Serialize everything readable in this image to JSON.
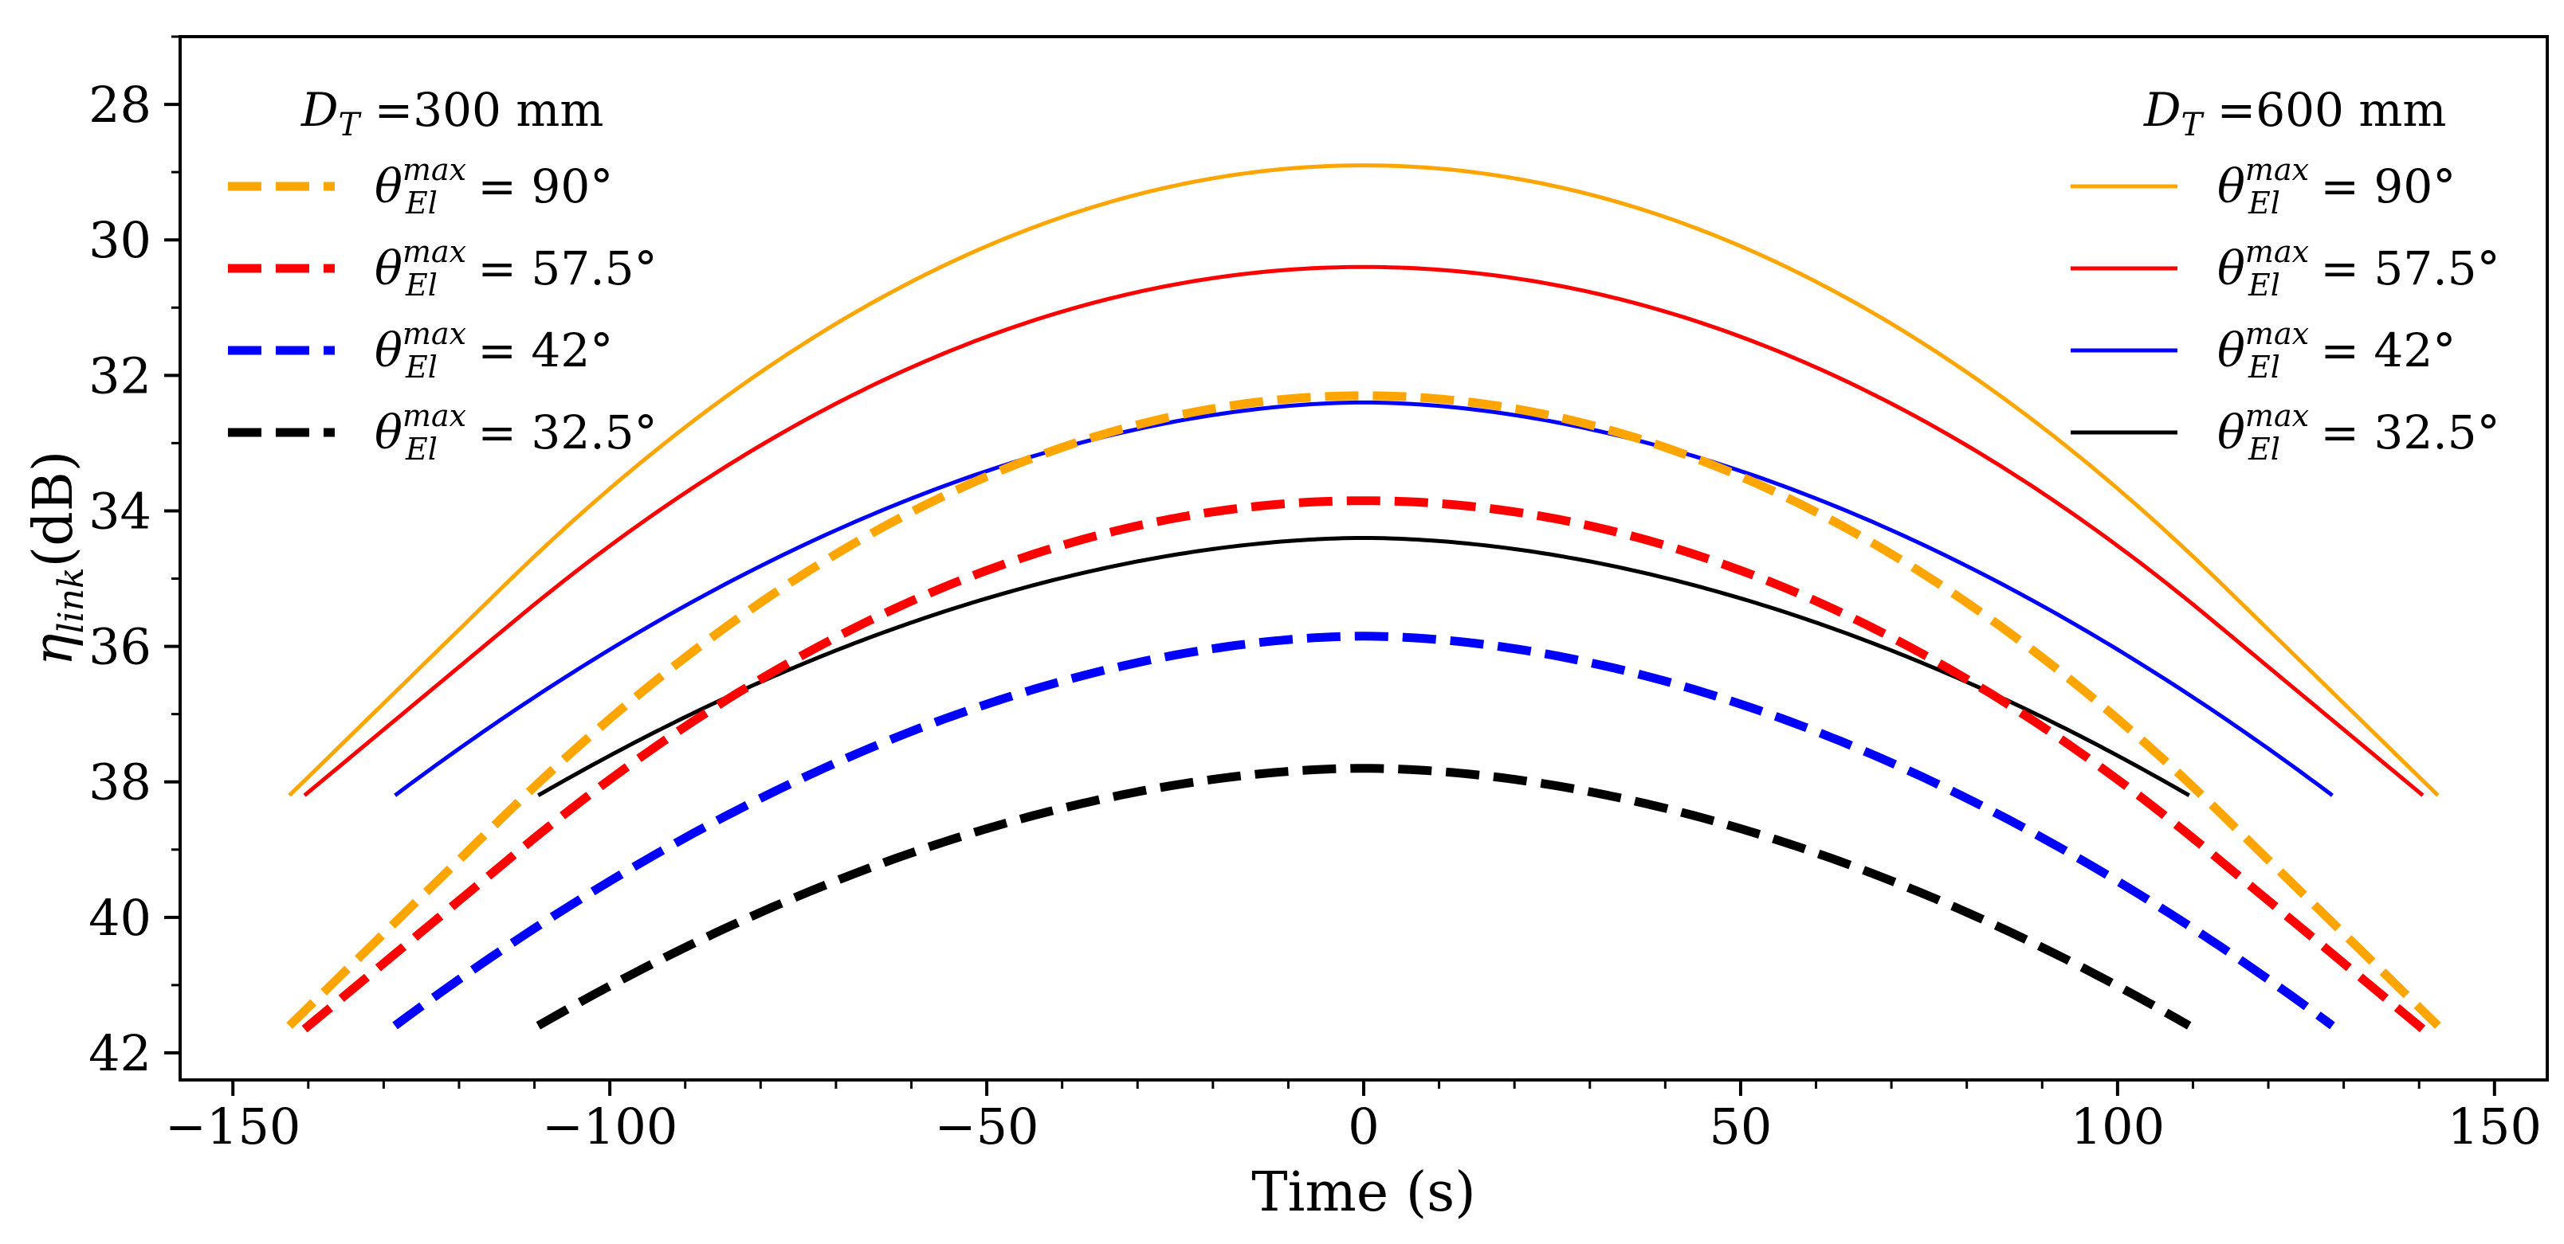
{
  "chart_data": {
    "type": "line",
    "title": "",
    "xlabel": "Time (s)",
    "ylabel": "η_link (dB)",
    "ylabel_symbol": "η",
    "ylabel_subscript": "link",
    "ylabel_unit": "(dB)",
    "xlim": [
      -157,
      157
    ],
    "ylim": [
      42.4,
      27.0
    ],
    "y_inverted": true,
    "x_ticks": [
      -150,
      -100,
      -50,
      0,
      50,
      100,
      150
    ],
    "x_tick_labels": [
      "−150",
      "−100",
      "−50",
      "0",
      "50",
      "100",
      "150"
    ],
    "y_ticks": [
      28,
      30,
      32,
      34,
      36,
      38,
      40,
      42
    ],
    "y_tick_labels": [
      "28",
      "30",
      "32",
      "34",
      "36",
      "38",
      "40",
      "42"
    ],
    "grid": false,
    "legends": [
      {
        "placement": "top-left",
        "title": "D_T =300 mm",
        "title_symbol": "D",
        "title_subscript": "T",
        "title_value": " =300 mm",
        "entries": [
          {
            "series": "dashed-90",
            "label": "θ_El^max = 90°",
            "value": " = 90°"
          },
          {
            "series": "dashed-57.5",
            "label": "θ_El^max = 57.5°",
            "value": " = 57.5°"
          },
          {
            "series": "dashed-42",
            "label": "θ_El^max = 42°",
            "value": " = 42°"
          },
          {
            "series": "dashed-32.5",
            "label": "θ_El^max = 32.5°",
            "value": " = 32.5°"
          }
        ]
      },
      {
        "placement": "top-right",
        "title": "D_T =600 mm",
        "title_symbol": "D",
        "title_subscript": "T",
        "title_value": " =600 mm",
        "entries": [
          {
            "series": "solid-90",
            "label": "θ_El^max = 90°",
            "value": " = 90°"
          },
          {
            "series": "solid-57.5",
            "label": "θ_El^max = 57.5°",
            "value": " = 57.5°"
          },
          {
            "series": "solid-42",
            "label": "θ_El^max = 42°",
            "value": " = 42°"
          },
          {
            "series": "solid-32.5",
            "label": "θ_El^max = 32.5°",
            "value": " = 32.5°"
          }
        ]
      }
    ],
    "series": [
      {
        "id": "solid-90",
        "name": "D_T=600 mm, θ_El^max=90°",
        "style": "solid",
        "color": "#FFA500",
        "x_range": [
          -142.5,
          142.5
        ],
        "peak_y": 28.9,
        "end_y": 38.2,
        "shape": "linear"
      },
      {
        "id": "solid-57.5",
        "name": "D_T=600 mm, θ_El^max=57.5°",
        "style": "solid",
        "color": "#FF0000",
        "x_range": [
          -140.5,
          140.5
        ],
        "peak_y": 30.4,
        "end_y": 38.2,
        "shape": "linear"
      },
      {
        "id": "solid-42",
        "name": "D_T=600 mm, θ_El^max=42°",
        "style": "solid",
        "color": "#0000FF",
        "x_range": [
          -128.5,
          128.5
        ],
        "peak_y": 32.4,
        "end_y": 38.2,
        "shape": "round"
      },
      {
        "id": "solid-32.5",
        "name": "D_T=600 mm, θ_El^max=32.5°",
        "style": "solid",
        "color": "#000000",
        "x_range": [
          -109.5,
          109.5
        ],
        "peak_y": 34.4,
        "end_y": 38.2,
        "shape": "round"
      },
      {
        "id": "dashed-90",
        "name": "D_T=300 mm, θ_El^max=90°",
        "style": "dashed",
        "color": "#FFA500",
        "x_range": [
          -142.5,
          142.5
        ],
        "peak_y": 32.3,
        "end_y": 41.6,
        "shape": "linear"
      },
      {
        "id": "dashed-57.5",
        "name": "D_T=300 mm, θ_El^max=57.5°",
        "style": "dashed",
        "color": "#FF0000",
        "x_range": [
          -140.5,
          140.5
        ],
        "peak_y": 33.85,
        "end_y": 41.65,
        "shape": "linear"
      },
      {
        "id": "dashed-42",
        "name": "D_T=300 mm, θ_El^max=42°",
        "style": "dashed",
        "color": "#0000FF",
        "x_range": [
          -128.5,
          128.5
        ],
        "peak_y": 35.85,
        "end_y": 41.6,
        "shape": "round"
      },
      {
        "id": "dashed-32.5",
        "name": "D_T=300 mm, θ_El^max=32.5°",
        "style": "dashed",
        "color": "#000000",
        "x_range": [
          -109.5,
          109.5
        ],
        "peak_y": 37.8,
        "end_y": 41.6,
        "shape": "round"
      }
    ]
  }
}
